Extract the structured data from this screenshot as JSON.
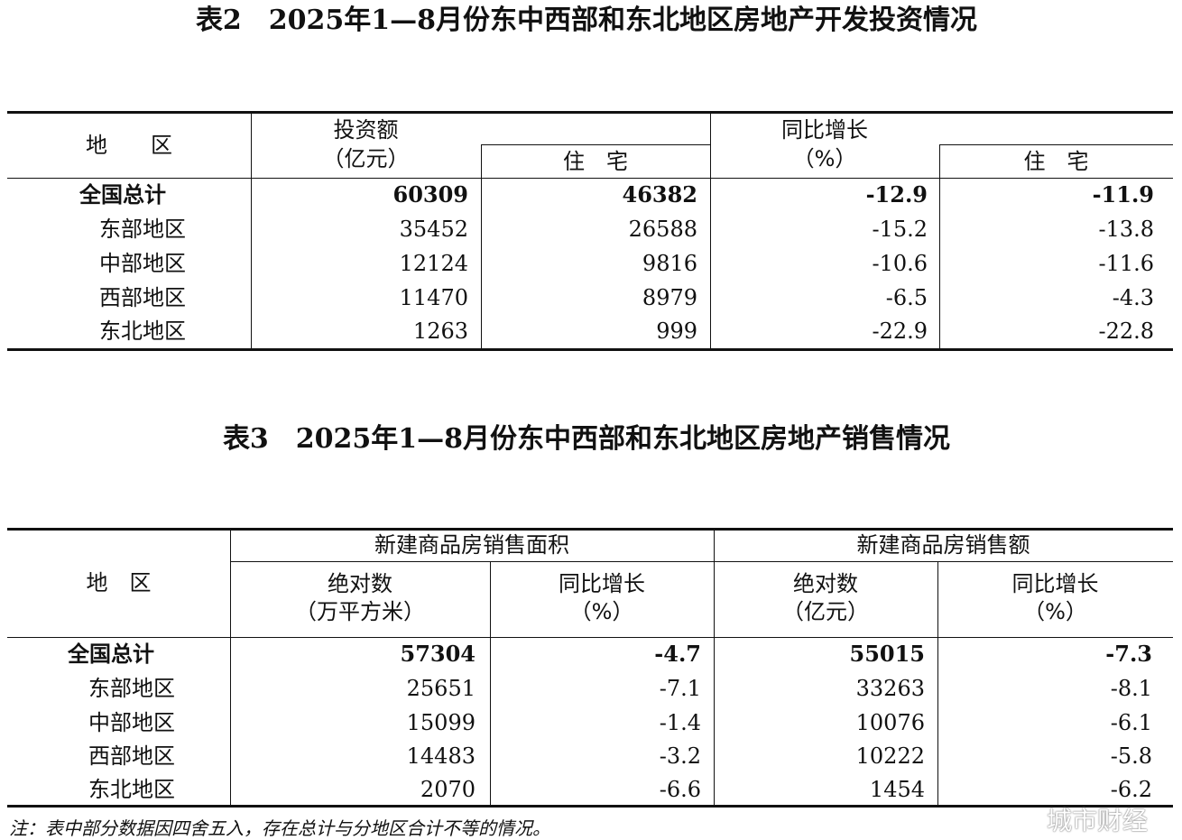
{
  "table2": {
    "title": "表2　2025年1—8月份东中西部和东北地区房地产开发投资情况",
    "headers": {
      "region": "地　　区",
      "investment": "投资额",
      "investment_unit": "（亿元）",
      "residential": "住　宅",
      "growth": "同比增长",
      "growth_unit": "（%）",
      "growth_residential": "住　宅"
    },
    "rows": [
      {
        "region": "全国总计",
        "investment": "60309",
        "residential": "46382",
        "growth": "-12.9",
        "growth_residential": "-11.9"
      },
      {
        "region": "东部地区",
        "investment": "35452",
        "residential": "26588",
        "growth": "-15.2",
        "growth_residential": "-13.8"
      },
      {
        "region": "中部地区",
        "investment": "12124",
        "residential": "9816",
        "growth": "-10.6",
        "growth_residential": "-11.6"
      },
      {
        "region": "西部地区",
        "investment": "11470",
        "residential": "8979",
        "growth": "-6.5",
        "growth_residential": "-4.3"
      },
      {
        "region": "东北地区",
        "investment": "1263",
        "residential": "999",
        "growth": "-22.9",
        "growth_residential": "-22.8"
      }
    ]
  },
  "table3": {
    "title": "表3　2025年1—8月份东中西部和东北地区房地产销售情况",
    "headers": {
      "region": "地　区",
      "area_group": "新建商品房销售面积",
      "sales_group": "新建商品房销售额",
      "area_abs": "绝对数",
      "area_unit": "（万平方米）",
      "area_growth": "同比增长",
      "area_growth_unit": "（%）",
      "sales_abs": "绝对数",
      "sales_unit": "（亿元）",
      "sales_growth": "同比增长",
      "sales_growth_unit": "（%）"
    },
    "rows": [
      {
        "region": "全国总计",
        "area": "57304",
        "area_growth": "-4.7",
        "sales": "55015",
        "sales_growth": "-7.3"
      },
      {
        "region": "东部地区",
        "area": "25651",
        "area_growth": "-7.1",
        "sales": "33263",
        "sales_growth": "-8.1"
      },
      {
        "region": "中部地区",
        "area": "15099",
        "area_growth": "-1.4",
        "sales": "10076",
        "sales_growth": "-6.1"
      },
      {
        "region": "西部地区",
        "area": "14483",
        "area_growth": "-3.2",
        "sales": "10222",
        "sales_growth": "-5.8"
      },
      {
        "region": "东北地区",
        "area": "2070",
        "area_growth": "-6.6",
        "sales": "1454",
        "sales_growth": "-6.2"
      }
    ]
  },
  "note": "注：表中部分数据因四舍五入，存在总计与分地区合计不等的情况。",
  "watermark": "城市财经"
}
